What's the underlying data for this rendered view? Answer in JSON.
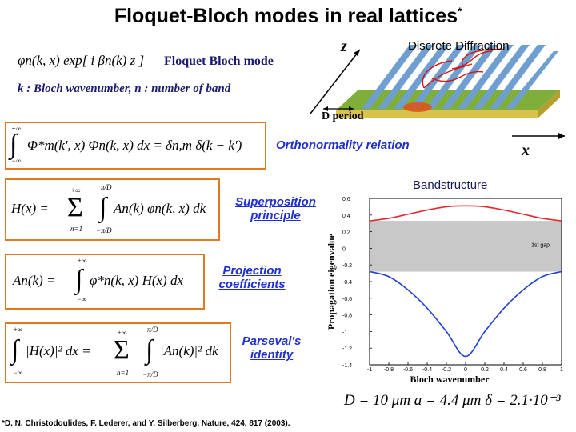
{
  "title": "Floquet-Bloch modes in real lattices",
  "title_marker": "*",
  "mode_eq": "φn(k, x) exp[ i βn(k) z ]",
  "mode_label": "Floquet Bloch mode",
  "wavenumber_note": "k : Bloch wavenumber, n : number of band",
  "lattice": {
    "z_label": "z",
    "x_label": "x",
    "diffraction_label": "Discrete Diffraction",
    "period_label": "D period"
  },
  "orthonormality": {
    "lim_top": "+∞",
    "lim_bottom": "−∞",
    "equation": "Φ*m(k', x) Φn(k, x) dx = δn,m δ(k − k')",
    "label": "Orthonormality relation"
  },
  "superposition": {
    "lhs": "H(x) =",
    "sum_top": "+∞",
    "sum_bottom": "n=1",
    "int_top": "π/D",
    "int_bottom": "−π/D",
    "rhs": "An(k) φn(k, x) dk",
    "label": "Superposition principle"
  },
  "projection": {
    "lhs": "An(k) =",
    "int_top": "+∞",
    "int_bottom": "−∞",
    "rhs": "φ*n(k, x) H(x) dx",
    "label": "Projection coefficients"
  },
  "parseval": {
    "int_top": "+∞",
    "int_bottom": "−∞",
    "lhs": "|H(x)|² dx =",
    "sum_top": "+∞",
    "sum_bottom": "n=1",
    "int2_top": "π/D",
    "int2_bottom": "−π/D",
    "rhs": "|An(k)|² dk",
    "label": "Parseval's identity"
  },
  "params": "D = 10 μm    a = 4.4 μm    δ = 2.1·10⁻³",
  "reference": "*D. N. Christodoulides, F. Lederer, and Y. Silberberg, Nature, 424, 817 (2003).",
  "chart_data": {
    "type": "line",
    "title": "Bandstructure",
    "xlabel": "Bloch wavenumber",
    "ylabel": "Propagation eigenvalue",
    "xlim": [
      -1,
      1
    ],
    "ylim": [
      -1.4,
      0.6
    ],
    "x_ticks": [
      "-1",
      "-0.8",
      "-0.6",
      "-0.4",
      "-0.2",
      "0",
      "0.2",
      "0.4",
      "0.6",
      "0.8",
      "1"
    ],
    "y_ticks": [
      "0.6",
      "0.4",
      "0.2",
      "0",
      "-0.2",
      "-0.4",
      "-0.6",
      "-0.8",
      "-1",
      "-1.2",
      "-1.4"
    ],
    "gap_band": [
      -0.28,
      0.33
    ],
    "gap_label": "1st gap",
    "series": [
      {
        "color": "#e0282e",
        "x": [
          -1,
          -0.8,
          -0.6,
          -0.4,
          -0.2,
          0,
          0.2,
          0.4,
          0.6,
          0.8,
          1
        ],
        "values": [
          0.33,
          0.36,
          0.41,
          0.46,
          0.5,
          0.51,
          0.5,
          0.46,
          0.41,
          0.36,
          0.33
        ]
      },
      {
        "color": "#1f3fd6",
        "x": [
          -1,
          -0.8,
          -0.6,
          -0.4,
          -0.2,
          0,
          0.2,
          0.4,
          0.6,
          0.8,
          1
        ],
        "values": [
          -0.28,
          -0.34,
          -0.5,
          -0.72,
          -1.0,
          -1.3,
          -1.0,
          -0.72,
          -0.5,
          -0.34,
          -0.28
        ]
      }
    ],
    "colors": {
      "gap": "#c8c8c8",
      "frame": "#000000"
    }
  }
}
